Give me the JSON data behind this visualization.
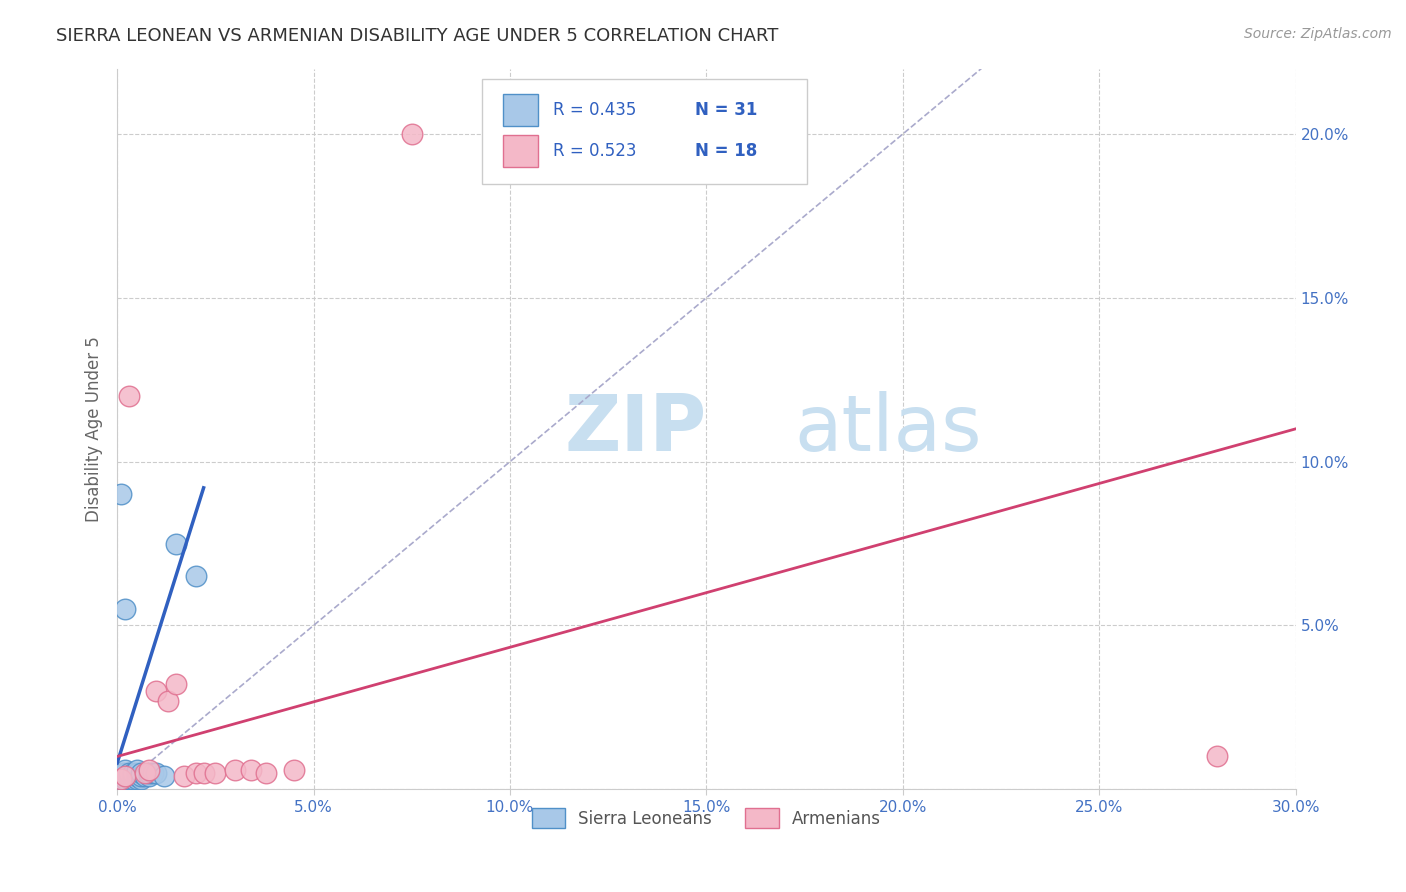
{
  "title": "SIERRA LEONEAN VS ARMENIAN DISABILITY AGE UNDER 5 CORRELATION CHART",
  "source": "Source: ZipAtlas.com",
  "ylabel": "Disability Age Under 5",
  "xlim": [
    0,
    0.3
  ],
  "ylim": [
    0,
    0.22
  ],
  "sierra_leone_color": "#a8c8e8",
  "sierra_leone_edge": "#5090c8",
  "armenian_color": "#f4b8c8",
  "armenian_edge": "#e07090",
  "regression_blue": "#3060c0",
  "regression_pink": "#d04070",
  "reference_line_color": "#aaaacc",
  "R_sl": 0.435,
  "N_sl": 31,
  "R_arm": 0.523,
  "N_arm": 18,
  "watermark_zip": "ZIP",
  "watermark_atlas": "atlas",
  "watermark_color_zip": "#c8dff0",
  "watermark_color_atlas": "#c8dff0",
  "legend_r_color": "#3060c0",
  "background_color": "#ffffff",
  "grid_color": "#cccccc",
  "tick_color": "#4472c4",
  "ylabel_color": "#666666",
  "title_color": "#333333",
  "source_color": "#999999",
  "legend_label_color": "#555555",
  "sl_label": "Sierra Leoneans",
  "arm_label": "Armenians",
  "sierra_leone_x": [
    0.001,
    0.001,
    0.001,
    0.002,
    0.002,
    0.002,
    0.002,
    0.003,
    0.003,
    0.003,
    0.003,
    0.004,
    0.004,
    0.004,
    0.005,
    0.005,
    0.005,
    0.005,
    0.006,
    0.006,
    0.006,
    0.007,
    0.008,
    0.008,
    0.009,
    0.01,
    0.012,
    0.015,
    0.02,
    0.001,
    0.002
  ],
  "sierra_leone_y": [
    0.003,
    0.004,
    0.005,
    0.003,
    0.004,
    0.005,
    0.006,
    0.003,
    0.004,
    0.004,
    0.005,
    0.003,
    0.004,
    0.005,
    0.003,
    0.004,
    0.005,
    0.006,
    0.003,
    0.004,
    0.005,
    0.004,
    0.004,
    0.005,
    0.005,
    0.005,
    0.004,
    0.075,
    0.065,
    0.09,
    0.055
  ],
  "armenian_x": [
    0.001,
    0.002,
    0.003,
    0.007,
    0.008,
    0.01,
    0.013,
    0.015,
    0.017,
    0.02,
    0.022,
    0.025,
    0.03,
    0.034,
    0.038,
    0.045,
    0.28,
    0.075
  ],
  "armenian_y": [
    0.003,
    0.004,
    0.12,
    0.005,
    0.006,
    0.03,
    0.027,
    0.032,
    0.004,
    0.005,
    0.005,
    0.005,
    0.006,
    0.006,
    0.005,
    0.006,
    0.01,
    0.2
  ]
}
